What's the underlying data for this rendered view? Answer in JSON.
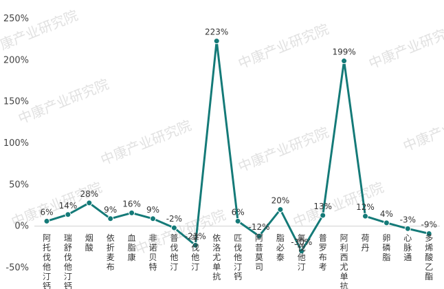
{
  "chart_data": {
    "type": "line",
    "categories": [
      "阿托伐他汀钙",
      "瑞舒伐他汀钙",
      "烟酸",
      "依折麦布",
      "血脂康",
      "非诺贝特",
      "普伐他汀",
      "辛伐他汀",
      "依洛尤单抗",
      "匹伐他汀钙",
      "阿昔莫司",
      "脂必泰",
      "氟伐他汀",
      "普罗布考",
      "阿利西尤单抗",
      "荷丹",
      "卵磷脂",
      "心脉通",
      "多烯酸乙酯"
    ],
    "values": [
      6,
      14,
      28,
      9,
      16,
      9,
      -2,
      -23,
      223,
      6,
      -12,
      20,
      -30,
      13,
      199,
      12,
      4,
      -3,
      -9
    ],
    "value_labels": [
      "6%",
      "14%",
      "28%",
      "9%",
      "16%",
      "9%",
      "-2%",
      "-23%",
      "223%",
      "6%",
      "-12%",
      "20%",
      "-30%",
      "13%",
      "199%",
      "12%",
      "4%",
      "-3%",
      "-9%"
    ],
    "yticks": [
      "250%",
      "200%",
      "150%",
      "100%",
      "50%",
      "0%",
      "-50%"
    ],
    "ylim": [
      -50,
      250
    ],
    "grid": false,
    "color": "#147a78",
    "watermark": "中康产业研究院"
  }
}
